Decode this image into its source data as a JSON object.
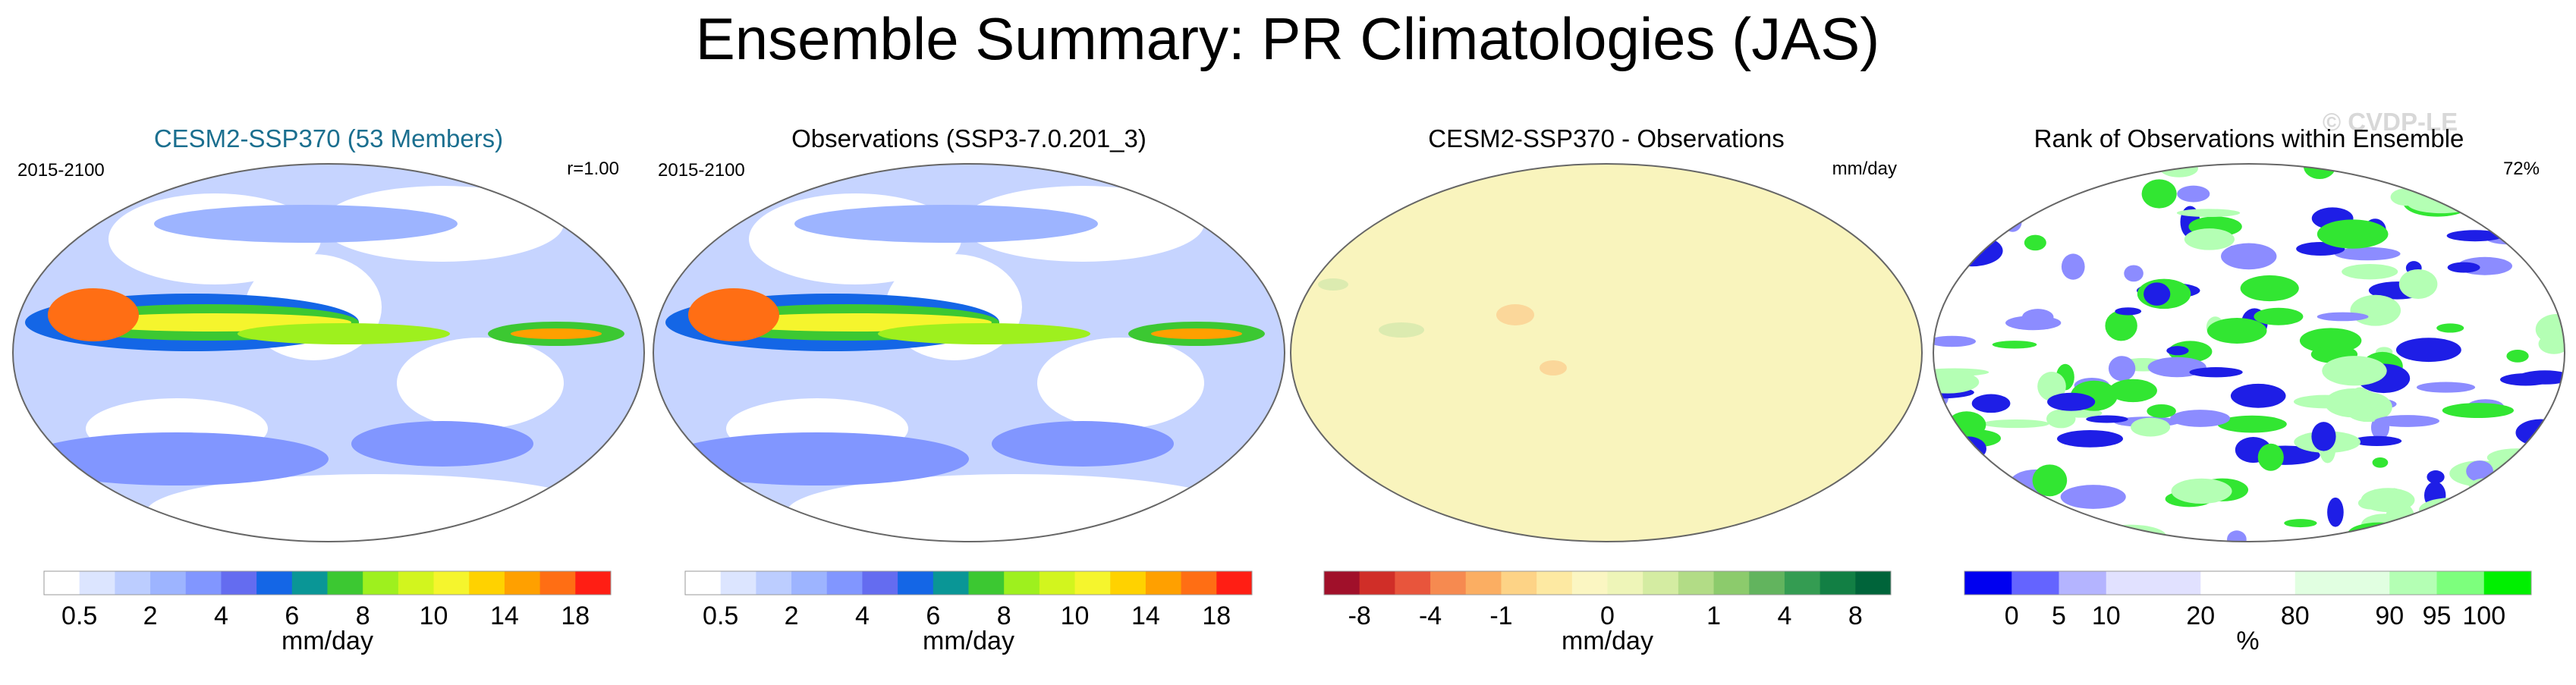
{
  "title": "Ensemble Summary: PR Climatologies (JAS)",
  "watermark": "© CVDP-LE",
  "panels": [
    {
      "title": "CESM2-SSP370 (53 Members)",
      "title_color": "#1b6f8f",
      "left_label": "2015-2100",
      "right_label": "r=1.00",
      "colorbar": {
        "colors": [
          "#ffffff",
          "#dce5ff",
          "#bccdff",
          "#9db4ff",
          "#8196ff",
          "#646cf0",
          "#1466e6",
          "#0a9696",
          "#3cc832",
          "#9ef01e",
          "#d2f51e",
          "#f5f52d",
          "#ffd200",
          "#ffa000",
          "#ff6e14",
          "#ff1e14"
        ],
        "ticks": [
          "0.5",
          "2",
          "4",
          "6",
          "8",
          "10",
          "14",
          "18"
        ],
        "units": "mm/day"
      }
    },
    {
      "title": "Observations (SSP3-7.0.201_3)",
      "title_color": "#000000",
      "left_label": "2015-2100",
      "colorbar": {
        "colors": [
          "#ffffff",
          "#dce5ff",
          "#bccdff",
          "#9db4ff",
          "#8196ff",
          "#646cf0",
          "#1466e6",
          "#0a9696",
          "#3cc832",
          "#9ef01e",
          "#d2f51e",
          "#f5f52d",
          "#ffd200",
          "#ffa000",
          "#ff6e14",
          "#ff1e14"
        ],
        "ticks": [
          "0.5",
          "2",
          "4",
          "6",
          "8",
          "10",
          "14",
          "18"
        ],
        "units": "mm/day"
      }
    },
    {
      "title": "CESM2-SSP370 - Observations",
      "title_color": "#000000",
      "right_label": "mm/day",
      "colorbar": {
        "colors": [
          "#a0102a",
          "#d02e28",
          "#e8553c",
          "#f68a50",
          "#fbae62",
          "#fdd386",
          "#fde9a2",
          "#fbf6c2",
          "#eef5b8",
          "#d4eca2",
          "#b2dc86",
          "#8ccb6c",
          "#62b45e",
          "#349c52",
          "#127f44",
          "#00643a"
        ],
        "ticks": [
          "-8",
          "-4",
          "-1",
          "0",
          "1",
          "4",
          "8"
        ],
        "units": "mm/day"
      }
    },
    {
      "title": "Rank of Observations within Ensemble",
      "title_color": "#000000",
      "right_label": "72%",
      "colorbar": {
        "colors": [
          "#0000f0",
          "#6464ff",
          "#b4b4ff",
          "#e1e1ff",
          "#e1e1ff",
          "#ffffff",
          "#ffffff",
          "#e1ffe1",
          "#e1ffe1",
          "#b4ffb4",
          "#7dff7d",
          "#00f000"
        ],
        "ticks": [
          "0",
          "5",
          "10",
          "20",
          "80",
          "90",
          "95",
          "100"
        ],
        "units": "%"
      }
    }
  ]
}
